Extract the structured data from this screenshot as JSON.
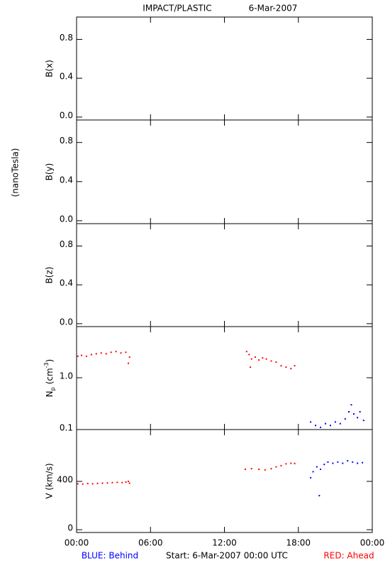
{
  "header": {
    "title": "IMPACT/PLASTIC",
    "date": "6-Mar-2007",
    "side_label": "(nanoTesla)"
  },
  "footer": {
    "left": "BLUE: Behind",
    "center": "Start:  6-Mar-2007 00:00 UTC",
    "right": "RED: Ahead"
  },
  "chart_data": [
    {
      "type": "scatter",
      "ylabel": "B(x)",
      "xlim": [
        0,
        24
      ],
      "xticks": [
        0,
        6,
        12,
        18,
        24
      ],
      "ylim": [
        -0.03,
        1.03
      ],
      "yticks": [
        {
          "value": 0,
          "label": "0.0"
        },
        0.4,
        0.8
      ],
      "series": []
    },
    {
      "type": "scatter",
      "ylabel": "B(y)",
      "xlim": [
        0,
        24
      ],
      "xticks": [
        0,
        6,
        12,
        18,
        24
      ],
      "ylim": [
        -0.03,
        1.03
      ],
      "yticks": [
        {
          "value": 0,
          "label": "0.0"
        },
        0.4,
        0.8
      ],
      "series": []
    },
    {
      "type": "scatter",
      "ylabel": "B(z)",
      "xlim": [
        0,
        24
      ],
      "xticks": [
        0,
        6,
        12,
        18,
        24
      ],
      "ylim": [
        -0.03,
        1.03
      ],
      "yticks": [
        {
          "value": 0,
          "label": "0.0"
        },
        0.4,
        0.8
      ],
      "series": []
    },
    {
      "type": "scatter",
      "ylabel": {
        "main": "N",
        "sub": "p",
        "unit": "(cm",
        "sup": "-3",
        "close": ")"
      },
      "log_scale": true,
      "xlim": [
        0,
        24
      ],
      "xticks": [
        0,
        6,
        12,
        18,
        24
      ],
      "ylim": [
        0.1,
        9.7
      ],
      "yticks": [
        0.1,
        {
          "value": 1,
          "label": "1.0"
        }
      ],
      "series": [
        {
          "color": "#ff0000",
          "x": [
            0.1,
            0.4,
            0.8,
            1.2,
            1.6,
            2.0,
            2.4,
            2.8,
            3.2,
            3.6,
            4.0,
            4.2,
            4.3
          ],
          "values": [
            2.6,
            2.7,
            2.6,
            2.8,
            2.9,
            3.0,
            2.9,
            3.1,
            3.2,
            3.0,
            3.1,
            1.9,
            2.5
          ]
        },
        {
          "color": "#ff0000",
          "x": [
            13.8,
            14.0,
            14.1,
            14.2,
            14.5,
            14.8,
            15.1,
            15.4,
            15.8,
            16.2,
            16.6,
            17.0,
            17.4,
            17.7
          ],
          "values": [
            3.2,
            2.8,
            1.6,
            2.3,
            2.5,
            2.2,
            2.4,
            2.3,
            2.1,
            2.0,
            1.7,
            1.6,
            1.5,
            1.7
          ]
        },
        {
          "color": "#0000ff",
          "x": [
            19.0,
            19.4,
            19.8,
            20.2,
            20.6,
            21.0,
            21.4,
            21.8,
            22.1,
            22.3,
            22.5,
            22.8,
            23.0,
            23.3
          ],
          "values": [
            0.14,
            0.12,
            0.11,
            0.13,
            0.12,
            0.14,
            0.13,
            0.16,
            0.22,
            0.3,
            0.2,
            0.17,
            0.22,
            0.15
          ]
        }
      ]
    },
    {
      "type": "scatter",
      "ylabel": "V (km/s)",
      "xlim": [
        0,
        24
      ],
      "xticks": [
        {
          "value": 0,
          "label": "00:00"
        },
        {
          "value": 6,
          "label": "06:00"
        },
        {
          "value": 12,
          "label": "12:00"
        },
        {
          "value": 18,
          "label": "18:00"
        },
        {
          "value": 24,
          "label": "00:00"
        }
      ],
      "ylim": [
        -23,
        829
      ],
      "yticks": [
        0,
        400
      ],
      "series": [
        {
          "color": "#ff0000",
          "x": [
            0.1,
            0.5,
            0.9,
            1.3,
            1.7,
            2.1,
            2.5,
            2.9,
            3.3,
            3.7,
            4.0,
            4.2,
            4.3
          ],
          "values": [
            380,
            378,
            382,
            380,
            383,
            385,
            387,
            390,
            392,
            390,
            395,
            400,
            385
          ]
        },
        {
          "color": "#ff0000",
          "x": [
            13.7,
            14.2,
            14.8,
            15.3,
            15.8,
            16.2,
            16.6,
            17.0,
            17.4,
            17.7
          ],
          "values": [
            500,
            505,
            500,
            495,
            505,
            520,
            530,
            545,
            550,
            548
          ]
        },
        {
          "color": "#0000ff",
          "x": [
            19.0,
            19.2,
            19.5,
            19.7,
            19.8,
            20.1,
            20.4,
            20.8,
            21.2,
            21.6,
            22.0,
            22.4,
            22.8,
            23.2
          ],
          "values": [
            430,
            480,
            520,
            282,
            500,
            540,
            560,
            550,
            560,
            550,
            570,
            560,
            550,
            555
          ]
        }
      ]
    }
  ]
}
